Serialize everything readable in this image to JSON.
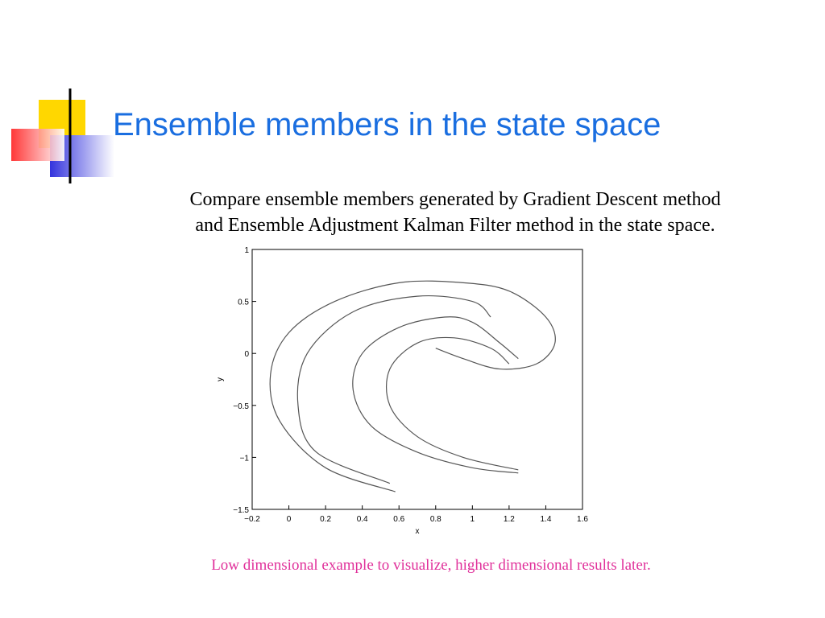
{
  "slide": {
    "title": "Ensemble members in the state space",
    "body": [
      "Compare ensemble members generated by Gradient Descent method",
      "and Ensemble Adjustment Kalman Filter method in the state space."
    ],
    "footnote": "Low dimensional example to visualize, higher dimensional results later."
  },
  "chart_data": {
    "type": "line",
    "xlabel": "x",
    "ylabel": "y",
    "xlim": [
      -0.2,
      1.6
    ],
    "ylim": [
      -1.5,
      1
    ],
    "xticks": [
      {
        "value": -0.2,
        "label": "−0.2"
      },
      0,
      0.2,
      0.4,
      0.6,
      0.8,
      1,
      1.2,
      1.4,
      1.6
    ],
    "yticks": [
      {
        "value": -1.5,
        "label": "−1.5"
      },
      {
        "value": -1,
        "label": "−1"
      },
      {
        "value": -0.5,
        "label": "−0.5"
      },
      0,
      0.5,
      1
    ],
    "series": [
      {
        "color": "#555555",
        "x": [
          0.58,
          0.2,
          -0.05,
          -0.1,
          0.0,
          0.25,
          0.6,
          0.95,
          1.2,
          1.4,
          1.45,
          1.35,
          1.15,
          0.95,
          0.8
        ],
        "values": [
          -1.33,
          -1.1,
          -0.65,
          -0.2,
          0.2,
          0.5,
          0.68,
          0.68,
          0.6,
          0.35,
          0.1,
          -0.1,
          -0.15,
          -0.05,
          0.05
        ]
      },
      {
        "color": "#555555",
        "x": [
          0.55,
          0.15,
          0.05,
          0.1,
          0.35,
          0.7,
          1.0,
          1.1
        ],
        "values": [
          -1.25,
          -0.95,
          -0.5,
          0.0,
          0.4,
          0.55,
          0.5,
          0.35
        ]
      },
      {
        "color": "#555555",
        "x": [
          1.25,
          1.0,
          0.7,
          0.45,
          0.35,
          0.4,
          0.6,
          0.85,
          1.0,
          1.15,
          1.25
        ],
        "values": [
          -1.15,
          -1.1,
          -0.95,
          -0.7,
          -0.35,
          0.0,
          0.25,
          0.35,
          0.3,
          0.1,
          -0.05
        ]
      },
      {
        "color": "#555555",
        "x": [
          1.25,
          0.95,
          0.7,
          0.55,
          0.55,
          0.7,
          0.9,
          1.1,
          1.2
        ],
        "values": [
          -1.12,
          -1.0,
          -0.8,
          -0.5,
          -0.15,
          0.1,
          0.15,
          0.05,
          -0.1
        ]
      }
    ]
  }
}
